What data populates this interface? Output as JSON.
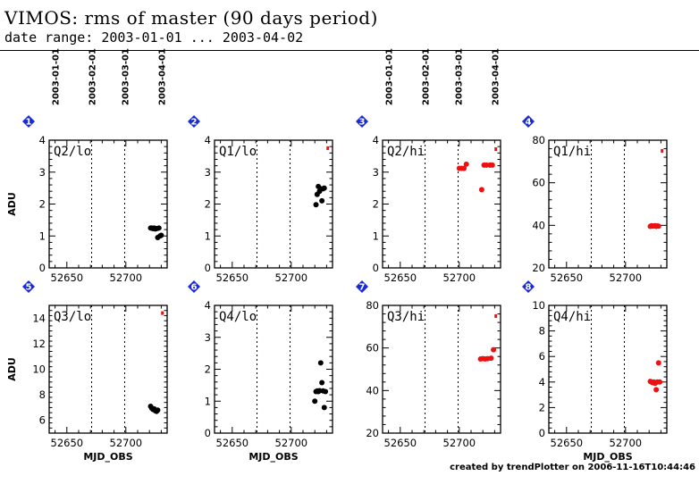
{
  "title": "VIMOS: rms of master (90 days period)",
  "subtitle": "date range: 2003-01-01 ... 2003-04-02",
  "footer": "created by trendPlotter on 2006-11-16T10:44:46",
  "colors": {
    "black_points": "#000000",
    "red_points": "#ee1111",
    "badge": "#1a2ad8"
  },
  "chart_data": [
    {
      "type": "scatter",
      "panel_number": "1",
      "label": "Q2/lo",
      "xlabel": "",
      "ylabel": "ADU",
      "xlim": [
        52635,
        52735
      ],
      "xticks": [
        52650,
        52700
      ],
      "ylim": [
        0,
        4
      ],
      "yticks": [
        0,
        1,
        2,
        3,
        4
      ],
      "date_ticks": [
        {
          "x": 52640,
          "label": "2003-01-01"
        },
        {
          "x": 52671,
          "label": "2003-02-01"
        },
        {
          "x": 52699,
          "label": "2003-03-01"
        },
        {
          "x": 52730,
          "label": "2003-04-01"
        }
      ],
      "series": [
        {
          "color": "black",
          "x": [
            52721,
            52722,
            52723,
            52724,
            52725,
            52726,
            52727,
            52728,
            52729,
            52730
          ],
          "y": [
            1.25,
            1.25,
            1.23,
            1.25,
            1.22,
            1.23,
            0.95,
            1.25,
            1.0,
            1.02
          ]
        }
      ],
      "markers": []
    },
    {
      "type": "scatter",
      "panel_number": "2",
      "label": "Q1/lo",
      "xlabel": "",
      "ylabel": "",
      "xlim": [
        52635,
        52735
      ],
      "xticks": [
        52650,
        52700
      ],
      "ylim": [
        0,
        4
      ],
      "yticks": [
        0,
        1,
        2,
        3,
        4
      ],
      "date_ticks": [],
      "series": [
        {
          "color": "black",
          "x": [
            52721,
            52722,
            52723,
            52724,
            52725,
            52726,
            52727,
            52728
          ],
          "y": [
            1.98,
            2.3,
            2.55,
            2.4,
            2.48,
            2.1,
            2.48,
            2.5
          ]
        }
      ],
      "markers": [
        {
          "color": "red",
          "x": 52731,
          "y": 3.75
        }
      ]
    },
    {
      "type": "scatter",
      "panel_number": "3",
      "label": "Q2/hi",
      "xlabel": "",
      "ylabel": "",
      "xlim": [
        52635,
        52735
      ],
      "xticks": [
        52650,
        52700
      ],
      "ylim": [
        0,
        4
      ],
      "yticks": [
        0,
        1,
        2,
        3,
        4
      ],
      "date_ticks": [
        {
          "x": 52640,
          "label": "2003-01-01"
        },
        {
          "x": 52671,
          "label": "2003-02-01"
        },
        {
          "x": 52699,
          "label": "2003-03-01"
        },
        {
          "x": 52730,
          "label": "2003-04-01"
        }
      ],
      "series": [
        {
          "color": "red",
          "x": [
            52700,
            52702,
            52704,
            52706,
            52719,
            52721,
            52723,
            52726,
            52728
          ],
          "y": [
            3.12,
            3.12,
            3.12,
            3.25,
            2.45,
            3.22,
            3.22,
            3.22,
            3.22
          ]
        }
      ],
      "markers": [
        {
          "color": "red",
          "x": 52731,
          "y": 3.72
        }
      ]
    },
    {
      "type": "scatter",
      "panel_number": "4",
      "label": "Q1/hi",
      "xlabel": "",
      "ylabel": "",
      "xlim": [
        52635,
        52735
      ],
      "xticks": [
        52650,
        52700
      ],
      "ylim": [
        20,
        80
      ],
      "yticks": [
        20,
        40,
        60,
        80
      ],
      "date_ticks": [],
      "series": [
        {
          "color": "red",
          "x": [
            52721,
            52722,
            52723,
            52724,
            52725,
            52726,
            52727,
            52728
          ],
          "y": [
            39.5,
            39.8,
            39.6,
            39.7,
            39.8,
            39.5,
            39.7,
            39.6
          ]
        }
      ],
      "markers": [
        {
          "color": "red",
          "x": 52731,
          "y": 75.0
        }
      ]
    },
    {
      "type": "scatter",
      "panel_number": "5",
      "label": "Q3/lo",
      "xlabel": "MJD_OBS",
      "ylabel": "ADU",
      "xlim": [
        52635,
        52735
      ],
      "xticks": [
        52650,
        52700
      ],
      "ylim": [
        5,
        15
      ],
      "yticks": [
        6,
        8,
        10,
        12,
        14
      ],
      "date_ticks": [],
      "series": [
        {
          "color": "black",
          "x": [
            52721,
            52722,
            52723,
            52724,
            52725,
            52726,
            52727
          ],
          "y": [
            7.1,
            6.95,
            6.85,
            6.9,
            6.75,
            6.7,
            6.8
          ]
        }
      ],
      "markers": [
        {
          "color": "red",
          "x": 52731,
          "y": 14.4
        }
      ]
    },
    {
      "type": "scatter",
      "panel_number": "6",
      "label": "Q4/lo",
      "xlabel": "MJD_OBS",
      "ylabel": "",
      "xlim": [
        52635,
        52735
      ],
      "xticks": [
        52650,
        52700
      ],
      "ylim": [
        0,
        4
      ],
      "yticks": [
        0,
        1,
        2,
        3,
        4
      ],
      "date_ticks": [],
      "series": [
        {
          "color": "black",
          "x": [
            52720,
            52721,
            52722,
            52723,
            52724,
            52725,
            52726,
            52727,
            52728,
            52729
          ],
          "y": [
            1.0,
            1.3,
            1.32,
            1.3,
            1.33,
            2.2,
            1.58,
            1.32,
            0.8,
            1.3
          ]
        }
      ],
      "markers": []
    },
    {
      "type": "scatter",
      "panel_number": "7",
      "label": "Q3/hi",
      "xlabel": "",
      "ylabel": "",
      "xlim": [
        52635,
        52735
      ],
      "xticks": [
        52650,
        52700
      ],
      "ylim": [
        20,
        80
      ],
      "yticks": [
        20,
        40,
        60,
        80
      ],
      "date_ticks": [],
      "series": [
        {
          "color": "red",
          "x": [
            52718,
            52720,
            52722,
            52724,
            52727,
            52729
          ],
          "y": [
            54.8,
            55.0,
            54.8,
            55.0,
            55.2,
            59.2
          ]
        }
      ],
      "markers": [
        {
          "color": "red",
          "x": 52731,
          "y": 75.0
        }
      ]
    },
    {
      "type": "scatter",
      "panel_number": "8",
      "label": "Q4/hi",
      "xlabel": "MJD_OBS",
      "ylabel": "",
      "xlim": [
        52635,
        52735
      ],
      "xticks": [
        52650,
        52700
      ],
      "ylim": [
        0,
        10
      ],
      "yticks": [
        0,
        2,
        4,
        6,
        8,
        10
      ],
      "date_ticks": [],
      "series": [
        {
          "color": "red",
          "x": [
            52721,
            52722,
            52723,
            52724,
            52725,
            52726,
            52727,
            52728,
            52729
          ],
          "y": [
            4.05,
            4.0,
            3.95,
            4.0,
            3.9,
            3.4,
            4.0,
            5.5,
            4.0
          ]
        }
      ],
      "markers": []
    }
  ]
}
